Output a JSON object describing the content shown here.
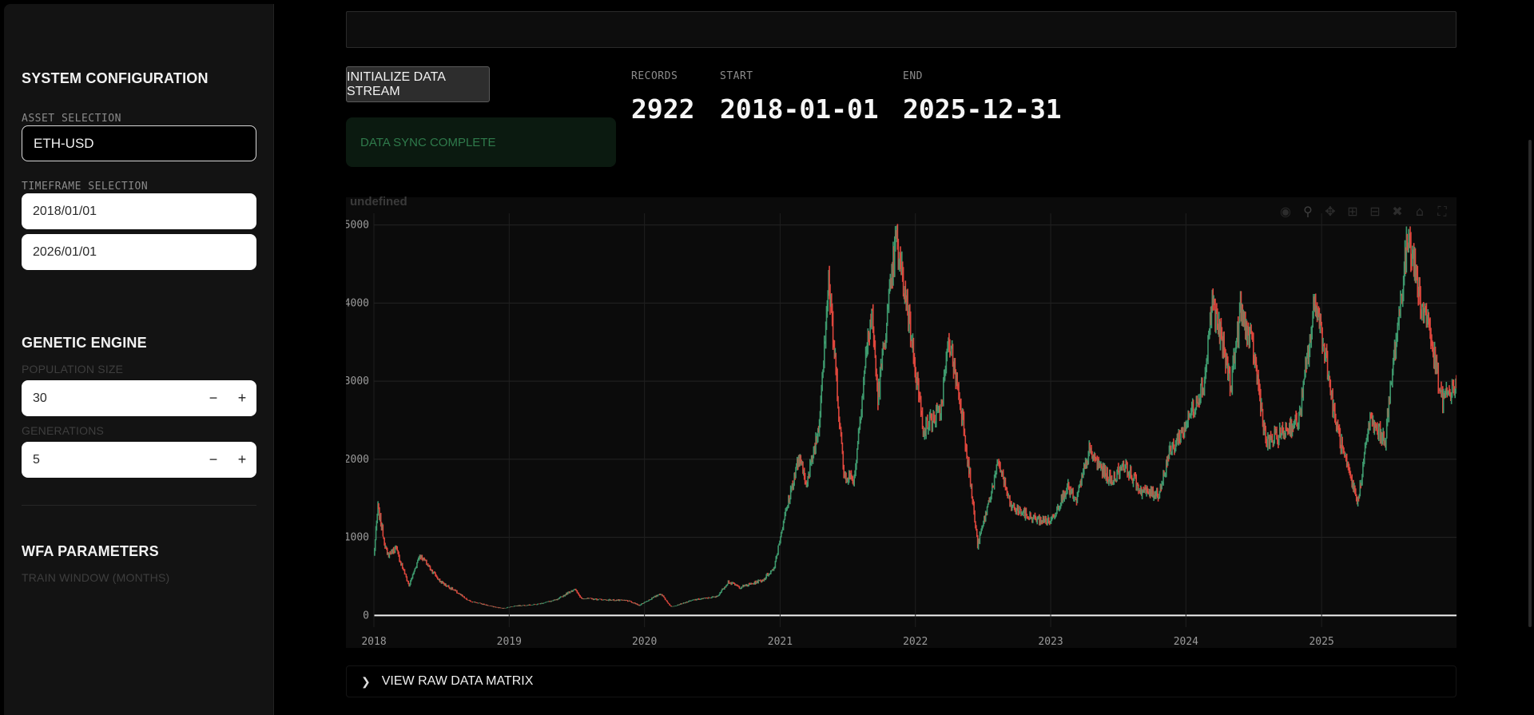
{
  "sidebar": {
    "system_config_title": "SYSTEM CONFIGURATION",
    "asset_label": "ASSET SELECTION",
    "asset_value": "ETH-USD",
    "timeframe_label": "TIMEFRAME SELECTION",
    "start_date": "2018/01/01",
    "end_date": "2026/01/01",
    "genetic_title": "GENETIC ENGINE",
    "population_label": "POPULATION SIZE",
    "population_value": "30",
    "generations_label": "GENERATIONS",
    "generations_value": "5",
    "stepper_minus": "−",
    "stepper_plus": "+",
    "wfa_title": "WFA PARAMETERS",
    "train_window_label": "TRAIN WINDOW (MONTHS)"
  },
  "main": {
    "init_button": "INITIALIZE DATA STREAM",
    "sync_status": "DATA SYNC COMPLETE",
    "metrics": [
      {
        "label": "RECORDS",
        "value": "2922"
      },
      {
        "label": "START",
        "value": "2018-01-01"
      },
      {
        "label": "END",
        "value": "2025-12-31"
      }
    ],
    "raw_data_toggle": "VIEW RAW DATA MATRIX"
  },
  "modebar_icons": [
    "camera-icon",
    "zoom-icon",
    "pan-icon",
    "zoom-in-icon",
    "zoom-out-icon",
    "autoscale-icon",
    "reset-axes-icon",
    "fullscreen-icon"
  ],
  "chart_data": {
    "type": "candlestick",
    "title": "undefined",
    "x_ticks": [
      "2018",
      "2019",
      "2020",
      "2021",
      "2022",
      "2023",
      "2024",
      "2025"
    ],
    "y_ticks": [
      "0",
      "1000",
      "2000",
      "3000",
      "4000",
      "5000"
    ],
    "xlim": [
      "2018-01-01",
      "2025-12-31"
    ],
    "ylim": [
      -150,
      5150
    ],
    "grid": true,
    "up_color": "#3e9a6e",
    "down_color": "#e0473d",
    "series": [
      {
        "values": [
          [
            "2018-01-01",
            760
          ],
          [
            "2018-01-12",
            1380
          ],
          [
            "2018-02-06",
            770
          ],
          [
            "2018-03-01",
            860
          ],
          [
            "2018-04-06",
            380
          ],
          [
            "2018-05-05",
            780
          ],
          [
            "2018-06-28",
            440
          ],
          [
            "2018-08-15",
            290
          ],
          [
            "2018-09-12",
            190
          ],
          [
            "2018-11-20",
            110
          ],
          [
            "2018-12-15",
            90
          ],
          [
            "2019-01-15",
            120
          ],
          [
            "2019-03-15",
            140
          ],
          [
            "2019-05-10",
            200
          ],
          [
            "2019-06-26",
            340
          ],
          [
            "2019-07-15",
            220
          ],
          [
            "2019-09-15",
            200
          ],
          [
            "2019-11-15",
            190
          ],
          [
            "2019-12-18",
            130
          ],
          [
            "2020-02-14",
            280
          ],
          [
            "2020-03-13",
            110
          ],
          [
            "2020-05-15",
            200
          ],
          [
            "2020-07-15",
            240
          ],
          [
            "2020-08-14",
            430
          ],
          [
            "2020-09-15",
            360
          ],
          [
            "2020-11-15",
            450
          ],
          [
            "2020-12-15",
            600
          ],
          [
            "2021-01-10",
            1200
          ],
          [
            "2021-02-20",
            2000
          ],
          [
            "2021-03-15",
            1700
          ],
          [
            "2021-04-15",
            2400
          ],
          [
            "2021-05-12",
            4300
          ],
          [
            "2021-06-22",
            1800
          ],
          [
            "2021-07-20",
            1750
          ],
          [
            "2021-08-20",
            3300
          ],
          [
            "2021-09-05",
            3900
          ],
          [
            "2021-09-22",
            2800
          ],
          [
            "2021-11-10",
            4800
          ],
          [
            "2021-12-15",
            3800
          ],
          [
            "2022-01-22",
            2400
          ],
          [
            "2022-03-10",
            2600
          ],
          [
            "2022-04-02",
            3550
          ],
          [
            "2022-05-10",
            2500
          ],
          [
            "2022-06-18",
            900
          ],
          [
            "2022-08-14",
            1950
          ],
          [
            "2022-09-15",
            1400
          ],
          [
            "2022-11-10",
            1250
          ],
          [
            "2022-12-31",
            1200
          ],
          [
            "2023-02-15",
            1650
          ],
          [
            "2023-03-10",
            1450
          ],
          [
            "2023-04-15",
            2100
          ],
          [
            "2023-06-15",
            1700
          ],
          [
            "2023-07-15",
            1950
          ],
          [
            "2023-09-01",
            1600
          ],
          [
            "2023-10-20",
            1550
          ],
          [
            "2023-11-15",
            2050
          ],
          [
            "2023-12-28",
            2400
          ],
          [
            "2024-02-20",
            3000
          ],
          [
            "2024-03-12",
            4050
          ],
          [
            "2024-05-01",
            2950
          ],
          [
            "2024-05-27",
            3900
          ],
          [
            "2024-07-01",
            3400
          ],
          [
            "2024-08-05",
            2200
          ],
          [
            "2024-09-06",
            2300
          ],
          [
            "2024-11-01",
            2500
          ],
          [
            "2024-12-16",
            4050
          ],
          [
            "2025-01-15",
            3250
          ],
          [
            "2025-02-02",
            2600
          ],
          [
            "2025-03-10",
            1900
          ],
          [
            "2025-04-09",
            1450
          ],
          [
            "2025-05-10",
            2500
          ],
          [
            "2025-06-22",
            2250
          ],
          [
            "2025-07-15",
            3300
          ],
          [
            "2025-08-24",
            4900
          ],
          [
            "2025-09-25",
            4000
          ],
          [
            "2025-10-15",
            3800
          ],
          [
            "2025-11-20",
            2750
          ],
          [
            "2025-12-31",
            2950
          ]
        ]
      }
    ]
  }
}
